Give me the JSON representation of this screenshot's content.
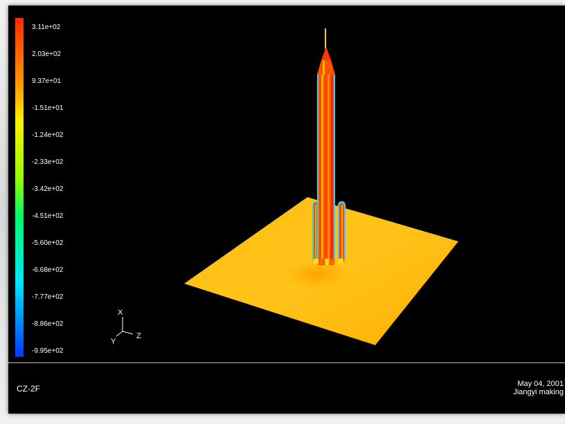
{
  "colorbar": {
    "labels": [
      "3.11e+02",
      "2.03e+02",
      "9.37e+01",
      "-1.51e+01",
      "-1.24e+02",
      "-2.33e+02",
      "-3.42e+02",
      "-4.51e+02",
      "-5.60e+02",
      "-6.68e+02",
      "-7.77e+02",
      "-8.86e+02",
      "-9.95e+02"
    ],
    "top_color": "#ff2a00",
    "bottom_color": "#0038ff"
  },
  "axes": {
    "x": "X",
    "y": "Y",
    "z": "Z"
  },
  "footer": {
    "case_name": "CZ-2F",
    "date": "May 04, 2001",
    "author": "Jiangyi making"
  },
  "colors": {
    "background": "#000000",
    "ground_plane": "#ffbd00",
    "rocket_core": "#ff4a00",
    "rocket_edge": "#2bd7ff"
  }
}
